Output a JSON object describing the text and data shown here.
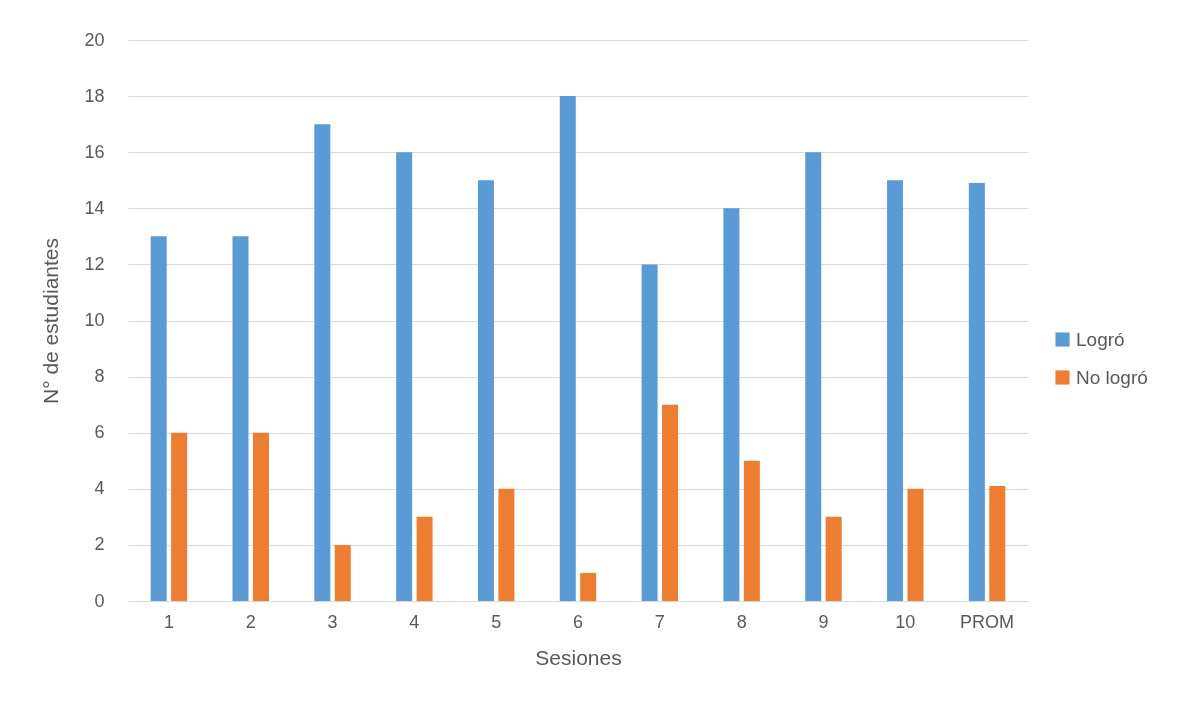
{
  "chart_data": {
    "type": "bar",
    "xlabel": "Sesiones",
    "ylabel": "N° de estudiantes",
    "categories": [
      "1",
      "2",
      "3",
      "4",
      "5",
      "6",
      "7",
      "8",
      "9",
      "10",
      "PROM"
    ],
    "series": [
      {
        "name": "Logró",
        "color": "#5b9bd5",
        "values": [
          13,
          13,
          17,
          16,
          15,
          18,
          12,
          14,
          16,
          15,
          14.9
        ]
      },
      {
        "name": "No logró",
        "color": "#ed7d31",
        "values": [
          6,
          6,
          2,
          3,
          4,
          1,
          7,
          5,
          3,
          4,
          4.1
        ]
      }
    ],
    "ylim": [
      0,
      20
    ],
    "yticks": [
      0,
      2,
      4,
      6,
      8,
      10,
      12,
      14,
      16,
      18,
      20
    ],
    "grid": "y",
    "legend": "right"
  }
}
